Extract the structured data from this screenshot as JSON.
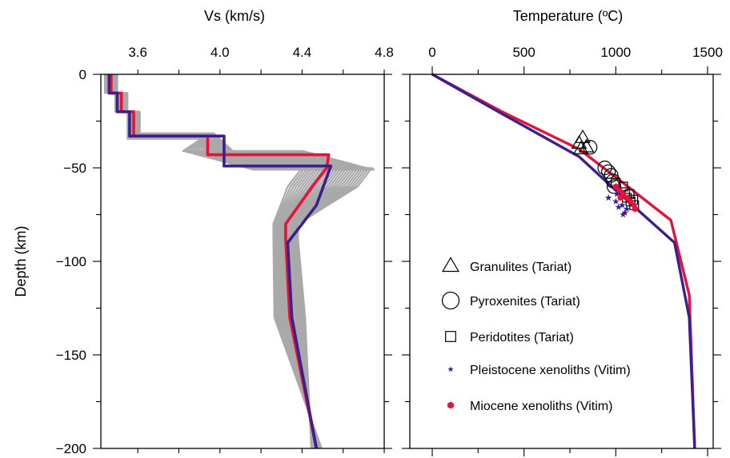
{
  "chart_data": [
    {
      "type": "line",
      "xlabel": "Vs (km/s)",
      "ylabel": "Depth (km)",
      "xlim": [
        3.42,
        4.8
      ],
      "ylim": [
        -200,
        0
      ],
      "xticks": [
        "3.6",
        "4.0",
        "4.4",
        "4.8"
      ],
      "yticks": [
        "0",
        "−50",
        "−100",
        "−150",
        "−200"
      ],
      "grid": false,
      "series": [
        {
          "color": "#e8113a",
          "points": [
            [
              3.47,
              0
            ],
            [
              3.47,
              -10
            ],
            [
              3.52,
              -10
            ],
            [
              3.52,
              -20
            ],
            [
              3.58,
              -20
            ],
            [
              3.58,
              -33
            ],
            [
              3.94,
              -33
            ],
            [
              3.94,
              -43
            ],
            [
              4.53,
              -43
            ],
            [
              4.52,
              -50
            ],
            [
              4.45,
              -60
            ],
            [
              4.32,
              -80
            ],
            [
              4.32,
              -88
            ],
            [
              4.34,
              -130
            ],
            [
              4.47,
              -200
            ]
          ]
        },
        {
          "color": "#3d1f8c",
          "points": [
            [
              3.46,
              0
            ],
            [
              3.46,
              -10
            ],
            [
              3.5,
              -10
            ],
            [
              3.5,
              -20
            ],
            [
              3.56,
              -20
            ],
            [
              3.56,
              -33
            ],
            [
              4.02,
              -33
            ],
            [
              4.02,
              -49
            ],
            [
              4.54,
              -49
            ],
            [
              4.47,
              -70
            ],
            [
              4.33,
              -90
            ],
            [
              4.35,
              -130
            ],
            [
              4.47,
              -200
            ]
          ]
        }
      ]
    },
    {
      "type": "scatter",
      "xlabel": "Temperature (ºC)",
      "xlim": [
        0,
        1500
      ],
      "ylim": [
        -200,
        0
      ],
      "xticks": [
        "0",
        "500",
        "1000",
        "1500"
      ],
      "grid": false,
      "lines": [
        {
          "color": "#e8113a",
          "points": [
            [
              0,
              0
            ],
            [
              380,
              -20
            ],
            [
              800,
              -40
            ],
            [
              1000,
              -55
            ],
            [
              1300,
              -78
            ],
            [
              1400,
              -118
            ],
            [
              1430,
              -200
            ]
          ]
        },
        {
          "color": "#3d1f8c",
          "points": [
            [
              0,
              0
            ],
            [
              360,
              -20
            ],
            [
              800,
              -44
            ],
            [
              1000,
              -62
            ],
            [
              1320,
              -90
            ],
            [
              1400,
              -130
            ],
            [
              1430,
              -200
            ]
          ]
        }
      ],
      "series": [
        {
          "name": "Granulites (Tariat)",
          "marker": "triangle",
          "color": "#000000",
          "points": [
            [
              820,
              -34
            ],
            [
              800,
              -37
            ],
            [
              810,
              -40
            ],
            [
              840,
              -39
            ]
          ]
        },
        {
          "name": "Pyroxenites (Tariat)",
          "marker": "circle",
          "color": "#000000",
          "points": [
            [
              860,
              -39
            ],
            [
              940,
              -50
            ],
            [
              960,
              -52
            ],
            [
              975,
              -54
            ],
            [
              985,
              -57
            ],
            [
              990,
              -60
            ]
          ]
        },
        {
          "name": "Peridotites (Tariat)",
          "marker": "square",
          "color": "#000000",
          "points": [
            [
              1000,
              -58
            ],
            [
              1040,
              -60
            ],
            [
              1050,
              -63
            ],
            [
              1060,
              -66
            ],
            [
              1075,
              -64
            ],
            [
              1080,
              -68
            ],
            [
              1095,
              -67
            ],
            [
              1100,
              -70
            ]
          ]
        },
        {
          "name": "Pleistocene xenoliths (Vitim)",
          "marker": "star",
          "color": "#3d1f8c",
          "points": [
            [
              960,
              -66
            ],
            [
              1000,
              -68
            ],
            [
              1015,
              -71
            ],
            [
              1035,
              -70
            ],
            [
              1050,
              -74
            ],
            [
              1060,
              -72
            ],
            [
              1005,
              -64
            ],
            [
              1040,
              -75
            ]
          ]
        },
        {
          "name": "Miocene xenoliths (Vitim)",
          "marker": "hexagon",
          "color": "#e8113a",
          "points": [
            [
              1000,
              -60
            ],
            [
              1020,
              -62
            ],
            [
              1040,
              -64
            ],
            [
              1060,
              -66
            ],
            [
              1080,
              -68
            ],
            [
              1100,
              -70
            ],
            [
              1105,
              -72
            ],
            [
              1025,
              -66
            ]
          ]
        }
      ]
    }
  ]
}
